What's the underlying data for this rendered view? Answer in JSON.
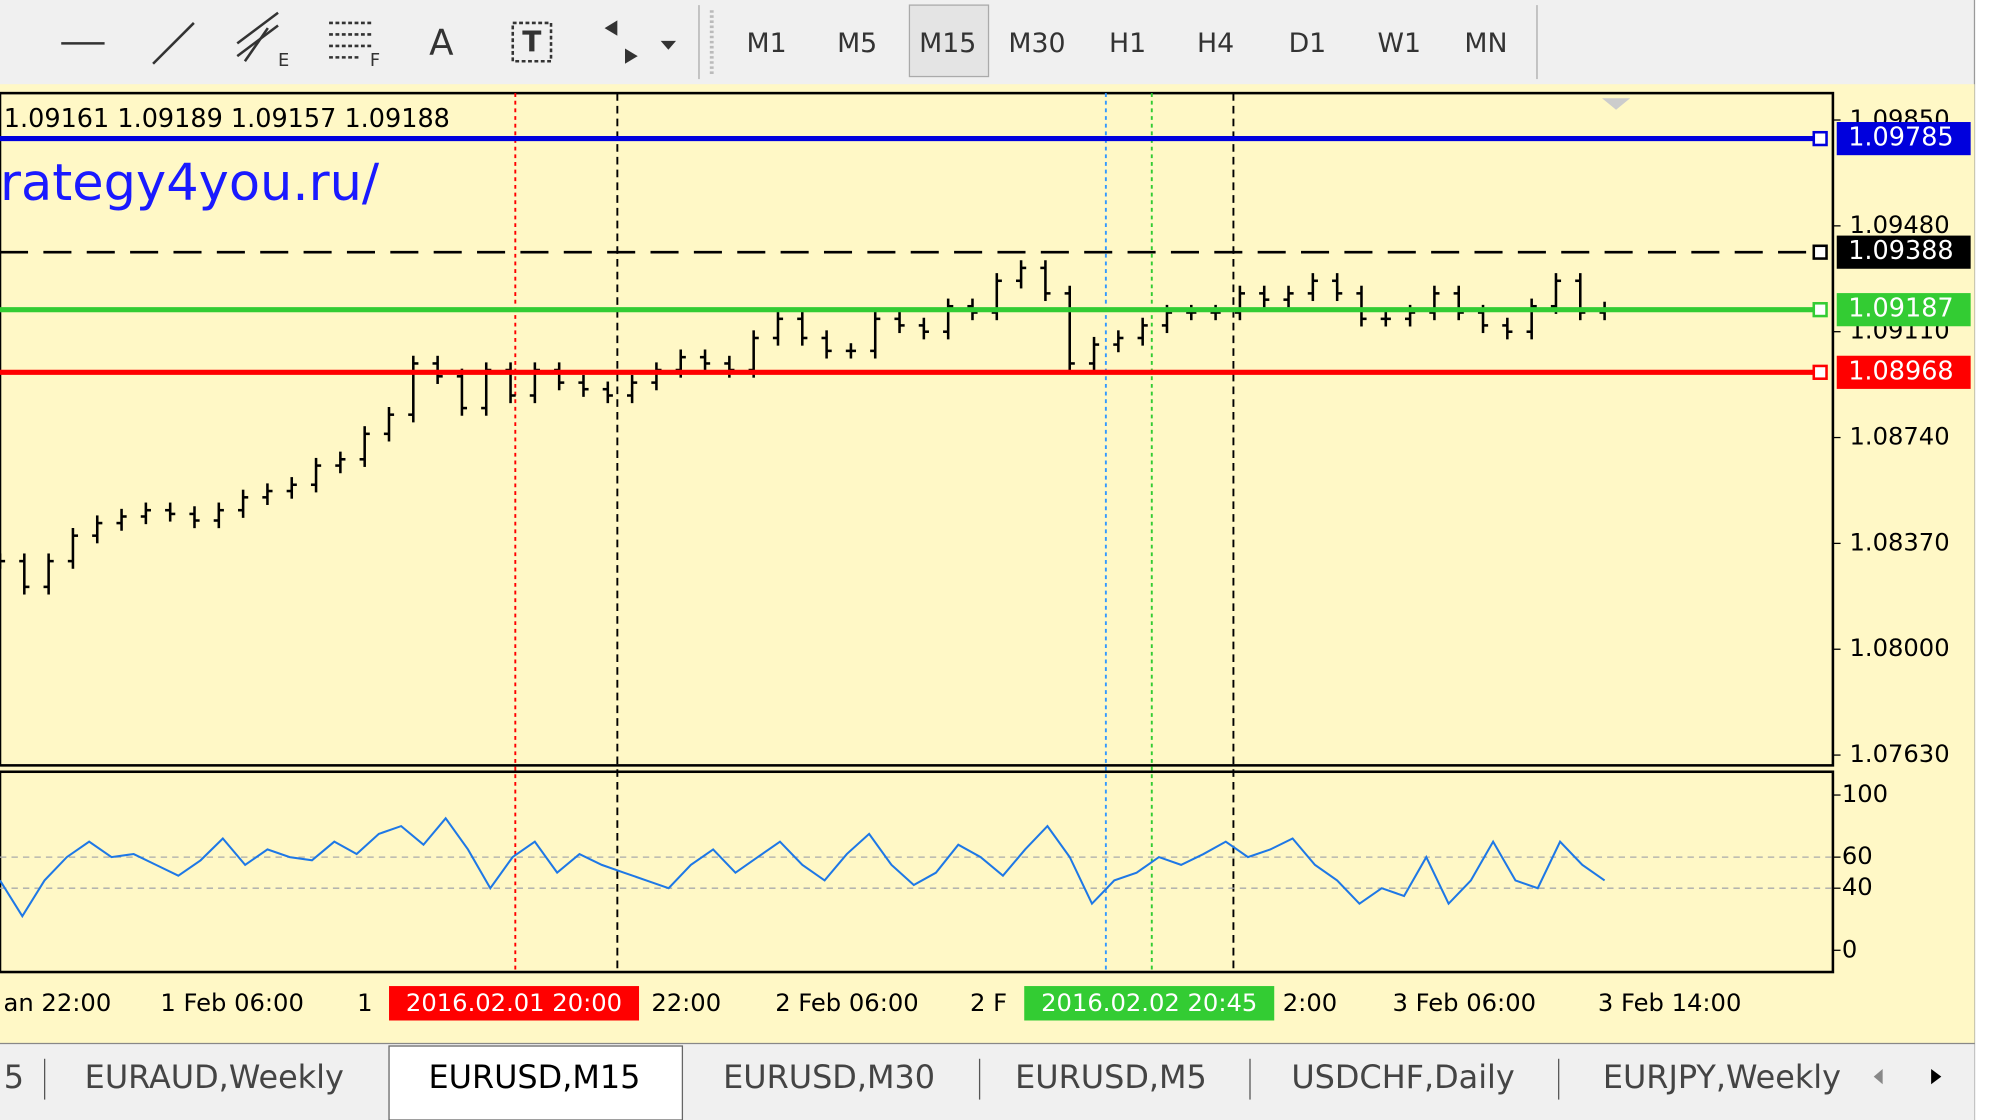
{
  "toolbar": {
    "tool_labels": [
      "E",
      "F",
      "A"
    ],
    "timeframes": [
      "M1",
      "M5",
      "M15",
      "M30",
      "H1",
      "H4",
      "D1",
      "W1",
      "MN"
    ],
    "active_timeframe": 2
  },
  "chart": {
    "ohlc": "1.09161 1.09189 1.09157 1.09188",
    "watermark": "rategy4you.ru/",
    "ylim": [
      1.07594,
      1.09944
    ],
    "yticks": [
      {
        "value": 1.0763,
        "label": "1.07630"
      },
      {
        "value": 1.08,
        "label": "1.08000"
      },
      {
        "value": 1.0837,
        "label": "1.08370"
      },
      {
        "value": 1.0874,
        "label": "1.08740"
      },
      {
        "value": 1.0911,
        "label": "1.09110"
      },
      {
        "value": 1.0948,
        "label": "1.09480"
      },
      {
        "value": 1.0985,
        "label": "1.09850"
      }
    ],
    "levels": [
      {
        "value": 1.09785,
        "color": "#0000dd",
        "dashed": false
      },
      {
        "value": 1.09388,
        "color": "#000000",
        "dashed": true
      },
      {
        "value": 1.09187,
        "color": "#33cc33",
        "dashed": false
      },
      {
        "value": 1.08968,
        "color": "#ff0000",
        "dashed": false
      }
    ],
    "closes": [
      1.08308,
      1.08218,
      1.08308,
      1.08397,
      1.08441,
      1.08464,
      1.08486,
      1.08473,
      1.0845,
      1.08486,
      1.08531,
      1.08553,
      1.08575,
      1.08642,
      1.08664,
      1.08753,
      1.0882,
      1.08999,
      1.08954,
      1.08843,
      1.08976,
      1.08887,
      1.08976,
      1.08932,
      1.08909,
      1.08887,
      1.08932,
      1.08976,
      1.09021,
      1.08999,
      1.08976,
      1.09088,
      1.09155,
      1.09088,
      1.09043,
      1.09043,
      1.09155,
      1.09132,
      1.0911,
      1.09199,
      1.09177,
      1.09288,
      1.09333,
      1.09244,
      1.08999,
      1.09065,
      1.09088,
      1.09132,
      1.09177,
      1.09177,
      1.09177,
      1.09244,
      1.09222,
      1.09244,
      1.09288,
      1.09244,
      1.09155,
      1.09155,
      1.09177,
      1.09244,
      1.09177,
      1.09132,
      1.0911,
      1.09199,
      1.09288,
      1.09177,
      1.09188
    ],
    "rsi": {
      "ylim": [
        -14,
        115
      ],
      "yticks": [
        100,
        60,
        40,
        0
      ],
      "levels": [
        60,
        40
      ],
      "values": [
        45,
        22,
        45,
        60,
        70,
        60,
        62,
        55,
        48,
        58,
        72,
        55,
        65,
        60,
        58,
        70,
        62,
        75,
        80,
        68,
        85,
        65,
        40,
        60,
        70,
        50,
        62,
        55,
        50,
        45,
        40,
        55,
        65,
        50,
        60,
        70,
        55,
        45,
        62,
        75,
        55,
        42,
        50,
        68,
        60,
        48,
        65,
        80,
        60,
        30,
        45,
        50,
        60,
        55,
        62,
        70,
        60,
        65,
        72,
        55,
        45,
        30,
        40,
        35,
        60,
        30,
        45,
        70,
        45,
        40,
        70,
        55,
        45
      ]
    },
    "time_labels": [
      "an 22:00",
      "1 Feb 06:00",
      "1",
      "22:00",
      "2 Feb 06:00",
      "2 F",
      "2:00",
      "3 Feb 06:00",
      "3 Feb 14:00"
    ],
    "markers": [
      {
        "label": "2016.02.01 20:00",
        "color": "#ff0000"
      },
      {
        "label": "2016.02.02 20:45",
        "color": "#33cc33"
      }
    ]
  },
  "tabs": {
    "items": [
      "5",
      "EURAUD,Weekly",
      "EURUSD,M15",
      "EURUSD,M30",
      "EURUSD,M5",
      "USDCHF,Daily",
      "EURJPY,Weekly"
    ],
    "active": 2
  }
}
